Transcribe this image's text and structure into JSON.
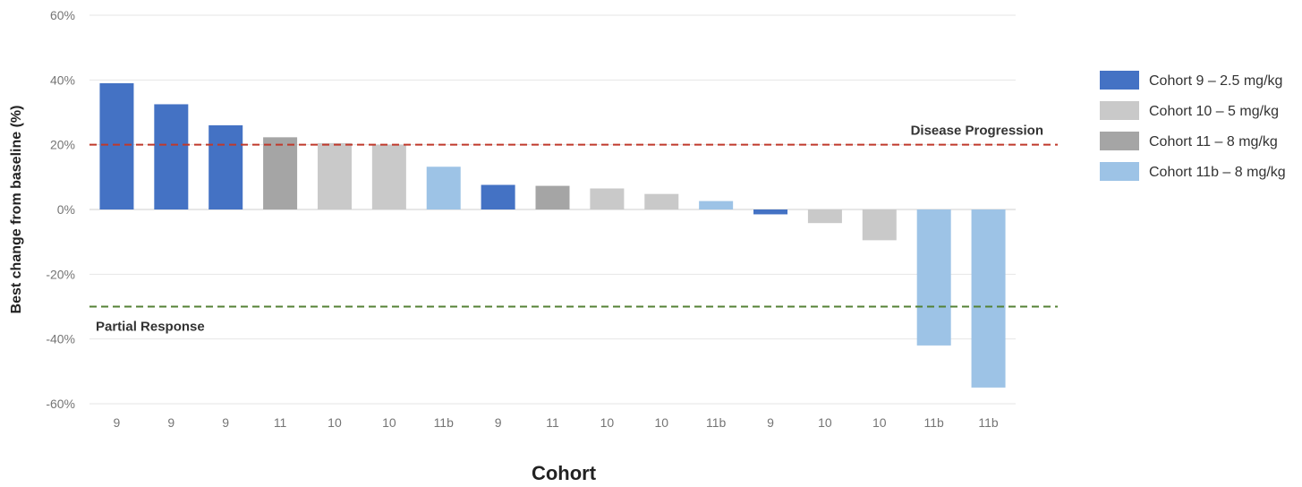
{
  "chart_data": {
    "type": "bar",
    "xlabel": "Cohort",
    "ylabel": "Best change from baseline (%)",
    "ylim": [
      -60,
      60
    ],
    "yticks": [
      60,
      40,
      20,
      0,
      -20,
      -40,
      -60
    ],
    "ytick_labels": [
      "60%",
      "40%",
      "20%",
      "0%",
      "-20%",
      "-40%",
      "-60%"
    ],
    "grid": true,
    "legend_position": "right",
    "categories": [
      "9",
      "9",
      "9",
      "11",
      "10",
      "10",
      "11b",
      "9",
      "11",
      "10",
      "10",
      "11b",
      "9",
      "10",
      "10",
      "11b",
      "11b"
    ],
    "values": [
      39,
      32.5,
      26,
      22.3,
      20.5,
      20,
      13.2,
      7.6,
      7.3,
      6.5,
      4.8,
      2.6,
      -1.5,
      -4.2,
      -9.5,
      -42,
      -55
    ],
    "series": [
      {
        "name": "Cohort 9 – 2.5 mg/kg",
        "key": "9",
        "color": "#4472c4"
      },
      {
        "name": "Cohort 10 – 5 mg/kg",
        "key": "10",
        "color": "#c9c9c9"
      },
      {
        "name": "Cohort 11 – 8 mg/kg",
        "key": "11",
        "color": "#a5a5a5"
      },
      {
        "name": "Cohort 11b – 8 mg/kg",
        "key": "11b",
        "color": "#9dc3e6"
      }
    ],
    "reference_lines": [
      {
        "label": "Disease Progression",
        "value": 20,
        "color": "#c0392b"
      },
      {
        "label": "Partial Response",
        "value": -30,
        "color": "#548235"
      }
    ]
  }
}
